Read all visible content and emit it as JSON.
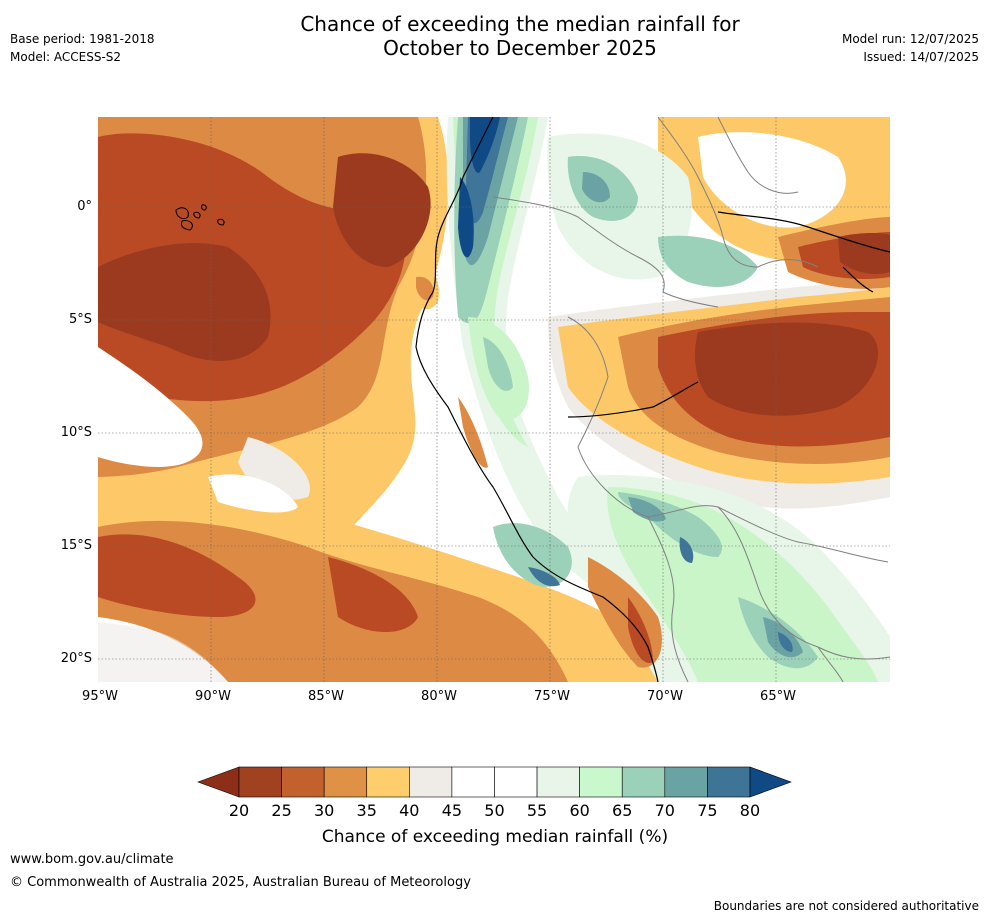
{
  "header": {
    "base_period": "Base period: 1981-2018",
    "model": "Model: ACCESS-S2",
    "title_line1": "Chance of exceeding the median rainfall for",
    "title_line2": "October to December 2025",
    "model_run": "Model run: 12/07/2025",
    "issued": "Issued: 14/07/2025"
  },
  "map": {
    "lat_labels": [
      "0°",
      "5°S",
      "10°S",
      "15°S",
      "20°S"
    ],
    "lon_labels": [
      "95°W",
      "90°W",
      "85°W",
      "80°W",
      "75°W",
      "70°W",
      "65°W"
    ],
    "palette": {
      "20-25": "#9b3a1f",
      "25-30": "#b94a24",
      "30-35": "#dc8a44",
      "35-40": "#fdc968",
      "40-45": "#efebe7",
      "45-55": "#ffffff",
      "55-60": "#e8f5e9",
      "60-65": "#c9f5c9",
      "65-70": "#9bd0b9",
      "70-75": "#6ba3a4",
      "75-80": "#3f7598",
      "80+": "#0f4a86",
      "below-20": "#8b2c18"
    },
    "coastline_color": "#000000",
    "border_color": "#808080"
  },
  "colorbar": {
    "ticks": [
      "20",
      "25",
      "30",
      "35",
      "40",
      "45",
      "50",
      "55",
      "60",
      "65",
      "70",
      "75",
      "80"
    ],
    "colors": [
      "#a0411f",
      "#c2602e",
      "#df9146",
      "#fdce6b",
      "#efebe6",
      "#ffffff",
      "#ffffff",
      "#e8f5e8",
      "#c8f8cb",
      "#9bd0b9",
      "#6aa3a4",
      "#3e7496"
    ],
    "low_extend_color": "#8d2e19",
    "high_extend_color": "#104a85",
    "label": "Chance of exceeding median rainfall (%)"
  },
  "footer": {
    "url": "www.bom.gov.au/climate",
    "copyright": "© Commonwealth of Australia 2025, Australian Bureau of Meteorology",
    "disclaimer": "Boundaries are not considered authoritative"
  }
}
